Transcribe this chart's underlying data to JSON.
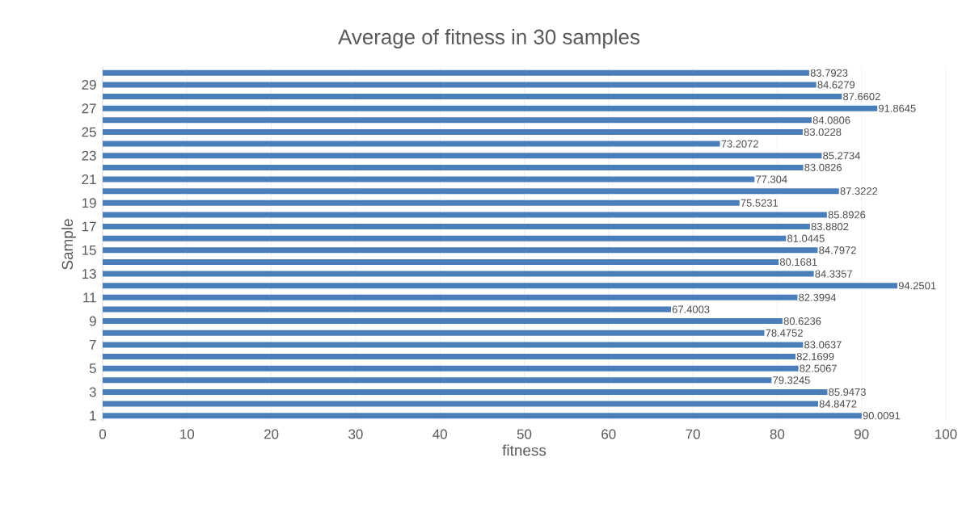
{
  "chart_data": {
    "type": "bar",
    "orientation": "horizontal",
    "title": "Average of fitness in 30 samples",
    "xlabel": "fitness",
    "ylabel": "Sample",
    "categories": [
      null,
      "29",
      null,
      "27",
      null,
      "25",
      null,
      "23",
      null,
      "21",
      null,
      "19",
      null,
      "17",
      null,
      "15",
      null,
      "13",
      null,
      "11",
      null,
      "9",
      null,
      "7",
      null,
      "5",
      null,
      "3",
      null,
      "1"
    ],
    "values": [
      83.7923,
      84.6279,
      87.6602,
      91.8645,
      84.0806,
      83.0228,
      73.2072,
      85.2734,
      83.0826,
      77.304,
      87.3222,
      75.5231,
      85.8926,
      83.8802,
      81.0445,
      84.7972,
      80.1681,
      84.3357,
      94.2501,
      82.3994,
      67.4003,
      80.6236,
      78.4752,
      83.0637,
      82.1699,
      82.5067,
      79.3245,
      85.9473,
      84.8472,
      90.0091
    ],
    "color": "#4a7ebb",
    "xlim": [
      0,
      100
    ],
    "xticks": [
      0,
      10,
      20,
      30,
      40,
      50,
      60,
      70,
      80,
      90,
      100
    ],
    "grid": "x",
    "data_labels": true
  }
}
